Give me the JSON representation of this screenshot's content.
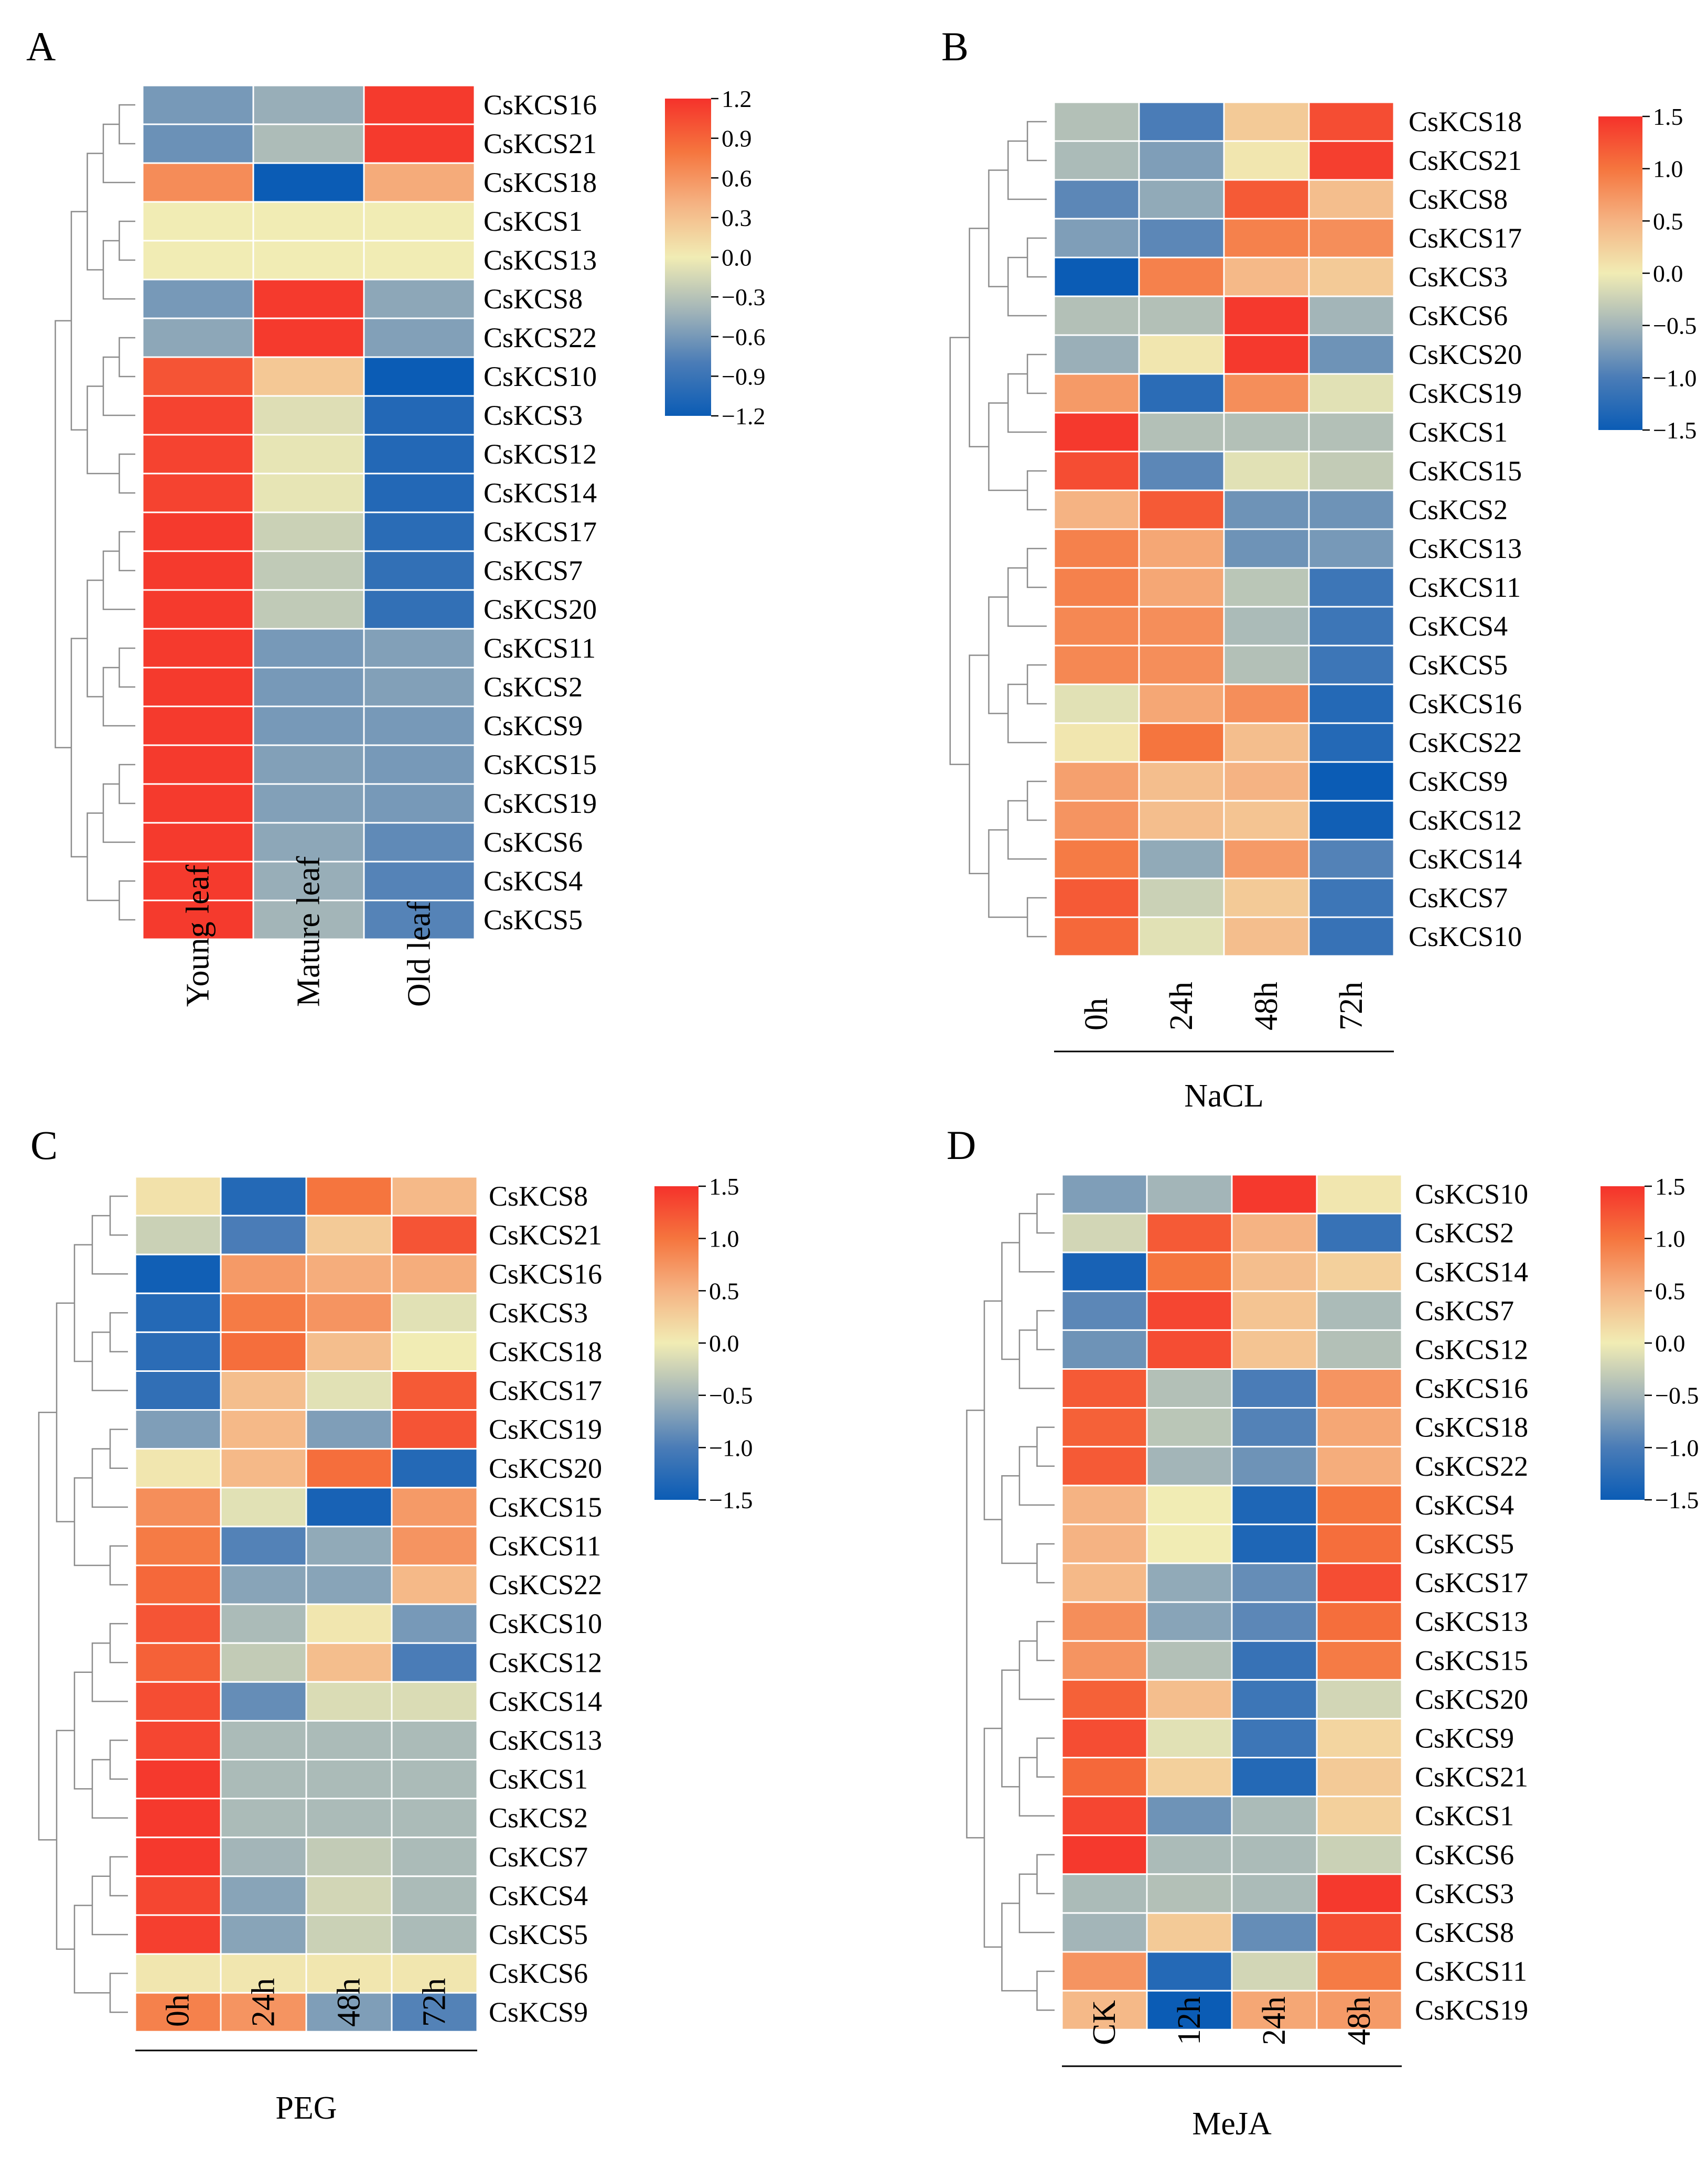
{
  "chart_data": [
    {
      "type": "heatmap",
      "panel": "A",
      "title": "",
      "xlabel": "",
      "columns": [
        "Young leaf",
        "Mature leaf",
        "Old leaf"
      ],
      "rows": [
        "CsKCS16",
        "CsKCS21",
        "CsKCS18",
        "CsKCS1",
        "CsKCS13",
        "CsKCS8",
        "CsKCS22",
        "CsKCS10",
        "CsKCS3",
        "CsKCS12",
        "CsKCS14",
        "CsKCS17",
        "CsKCS7",
        "CsKCS20",
        "CsKCS11",
        "CsKCS2",
        "CsKCS9",
        "CsKCS15",
        "CsKCS19",
        "CsKCS6",
        "CsKCS4",
        "CsKCS5"
      ],
      "values": [
        [
          -0.6,
          -0.45,
          1.15
        ],
        [
          -0.65,
          -0.35,
          1.15
        ],
        [
          0.65,
          -1.2,
          0.45
        ],
        [
          0.0,
          0.0,
          0.0
        ],
        [
          0.0,
          0.0,
          0.0
        ],
        [
          -0.6,
          1.15,
          -0.5
        ],
        [
          -0.5,
          1.15,
          -0.55
        ],
        [
          1.0,
          0.25,
          -1.2
        ],
        [
          1.1,
          -0.1,
          -1.05
        ],
        [
          1.1,
          -0.05,
          -1.05
        ],
        [
          1.1,
          -0.05,
          -1.05
        ],
        [
          1.15,
          -0.2,
          -1.0
        ],
        [
          1.15,
          -0.25,
          -0.95
        ],
        [
          1.15,
          -0.25,
          -0.95
        ],
        [
          1.15,
          -0.6,
          -0.55
        ],
        [
          1.15,
          -0.6,
          -0.55
        ],
        [
          1.15,
          -0.6,
          -0.6
        ],
        [
          1.15,
          -0.55,
          -0.6
        ],
        [
          1.15,
          -0.55,
          -0.6
        ],
        [
          1.15,
          -0.5,
          -0.7
        ],
        [
          1.15,
          -0.45,
          -0.75
        ],
        [
          1.15,
          -0.4,
          -0.75
        ]
      ],
      "colorbar": {
        "vmin": -1.2,
        "vmax": 1.2,
        "ticks": [
          "1.2",
          "0.9",
          "0.6",
          "0.3",
          "0.0",
          "−0.3",
          "−0.6",
          "−0.9",
          "−1.2"
        ]
      },
      "colormap": [
        "#0b5cb5",
        "#4a7cb7",
        "#a3b5b8",
        "#f1ecb4",
        "#f5b383",
        "#f5753e",
        "#f5322b"
      ]
    },
    {
      "type": "heatmap",
      "panel": "B",
      "title": "",
      "xlabel": "NaCL",
      "columns": [
        "0h",
        "24h",
        "48h",
        "72h"
      ],
      "rows": [
        "CsKCS18",
        "CsKCS21",
        "CsKCS8",
        "CsKCS17",
        "CsKCS3",
        "CsKCS6",
        "CsKCS20",
        "CsKCS19",
        "CsKCS1",
        "CsKCS15",
        "CsKCS2",
        "CsKCS13",
        "CsKCS11",
        "CsKCS4",
        "CsKCS5",
        "CsKCS16",
        "CsKCS22",
        "CsKCS9",
        "CsKCS12",
        "CsKCS14",
        "CsKCS7",
        "CsKCS10"
      ],
      "values": [
        [
          -0.4,
          -1.0,
          0.3,
          1.3
        ],
        [
          -0.45,
          -0.7,
          0.05,
          1.4
        ],
        [
          -0.9,
          -0.6,
          1.2,
          0.4
        ],
        [
          -0.7,
          -0.9,
          0.9,
          0.8
        ],
        [
          -1.5,
          0.9,
          0.45,
          0.3
        ],
        [
          -0.4,
          -0.4,
          1.45,
          -0.5
        ],
        [
          -0.55,
          0.05,
          1.45,
          -0.8
        ],
        [
          0.7,
          -1.25,
          0.8,
          -0.1
        ],
        [
          1.45,
          -0.4,
          -0.4,
          -0.4
        ],
        [
          1.3,
          -0.9,
          -0.1,
          -0.3
        ],
        [
          0.5,
          1.2,
          -0.8,
          -0.8
        ],
        [
          0.9,
          0.6,
          -0.8,
          -0.75
        ],
        [
          0.9,
          0.6,
          -0.35,
          -1.1
        ],
        [
          0.85,
          0.8,
          -0.45,
          -1.1
        ],
        [
          0.85,
          0.8,
          -0.4,
          -1.1
        ],
        [
          -0.1,
          0.6,
          0.8,
          -1.3
        ],
        [
          0.05,
          1.0,
          0.4,
          -1.3
        ],
        [
          0.65,
          0.4,
          0.5,
          -1.5
        ],
        [
          0.75,
          0.4,
          0.35,
          -1.45
        ],
        [
          0.95,
          -0.6,
          0.7,
          -0.95
        ],
        [
          1.2,
          -0.25,
          0.3,
          -1.1
        ],
        [
          1.1,
          -0.1,
          0.4,
          -1.15
        ]
      ],
      "colorbar": {
        "vmin": -1.5,
        "vmax": 1.5,
        "ticks": [
          "1.5",
          "1.0",
          "0.5",
          "0.0",
          "−0.5",
          "−1.0",
          "−1.5"
        ]
      },
      "colormap": [
        "#0b5cb5",
        "#4a7cb7",
        "#a3b5b8",
        "#f1ecb4",
        "#f5b383",
        "#f5753e",
        "#f5322b"
      ]
    },
    {
      "type": "heatmap",
      "panel": "C",
      "title": "",
      "xlabel": "PEG",
      "columns": [
        "0h",
        "24h",
        "48h",
        "72h"
      ],
      "rows": [
        "CsKCS8",
        "CsKCS21",
        "CsKCS16",
        "CsKCS3",
        "CsKCS18",
        "CsKCS17",
        "CsKCS19",
        "CsKCS20",
        "CsKCS15",
        "CsKCS11",
        "CsKCS22",
        "CsKCS10",
        "CsKCS12",
        "CsKCS14",
        "CsKCS13",
        "CsKCS1",
        "CsKCS2",
        "CsKCS7",
        "CsKCS4",
        "CsKCS5",
        "CsKCS6",
        "CsKCS9"
      ],
      "values": [
        [
          0.1,
          -1.3,
          1.0,
          0.45
        ],
        [
          -0.25,
          -1.0,
          0.3,
          1.25
        ],
        [
          -1.45,
          0.7,
          0.55,
          0.55
        ],
        [
          -1.3,
          0.95,
          0.75,
          -0.1
        ],
        [
          -1.25,
          1.05,
          0.4,
          0.0
        ],
        [
          -1.2,
          0.4,
          -0.1,
          1.2
        ],
        [
          -0.7,
          0.45,
          -0.7,
          1.25
        ],
        [
          0.05,
          0.45,
          1.05,
          -1.3
        ],
        [
          0.8,
          -0.1,
          -1.4,
          0.7
        ],
        [
          0.95,
          -0.95,
          -0.6,
          0.75
        ],
        [
          1.1,
          -0.65,
          -0.65,
          0.45
        ],
        [
          1.25,
          -0.45,
          0.05,
          -0.75
        ],
        [
          1.15,
          -0.3,
          0.4,
          -1.0
        ],
        [
          1.3,
          -0.85,
          -0.15,
          -0.15
        ],
        [
          1.35,
          -0.45,
          -0.45,
          -0.45
        ],
        [
          1.45,
          -0.45,
          -0.45,
          -0.45
        ],
        [
          1.45,
          -0.45,
          -0.45,
          -0.45
        ],
        [
          1.45,
          -0.5,
          -0.3,
          -0.45
        ],
        [
          1.35,
          -0.65,
          -0.2,
          -0.45
        ],
        [
          1.4,
          -0.65,
          -0.25,
          -0.45
        ],
        [
          0.05,
          0.05,
          0.05,
          0.05
        ],
        [
          0.9,
          0.75,
          -0.7,
          -0.95
        ]
      ],
      "colorbar": {
        "vmin": -1.5,
        "vmax": 1.5,
        "ticks": [
          "1.5",
          "1.0",
          "0.5",
          "0.0",
          "−0.5",
          "−1.0",
          "−1.5"
        ]
      },
      "colormap": [
        "#0b5cb5",
        "#4a7cb7",
        "#a3b5b8",
        "#f1ecb4",
        "#f5b383",
        "#f5753e",
        "#f5322b"
      ]
    },
    {
      "type": "heatmap",
      "panel": "D",
      "title": "",
      "xlabel": "MeJA",
      "columns": [
        "CK",
        "12h",
        "24h",
        "48h"
      ],
      "rows": [
        "CsKCS10",
        "CsKCS2",
        "CsKCS14",
        "CsKCS7",
        "CsKCS12",
        "CsKCS16",
        "CsKCS18",
        "CsKCS22",
        "CsKCS4",
        "CsKCS5",
        "CsKCS17",
        "CsKCS13",
        "CsKCS15",
        "CsKCS20",
        "CsKCS9",
        "CsKCS21",
        "CsKCS1",
        "CsKCS6",
        "CsKCS3",
        "CsKCS8",
        "CsKCS11",
        "CsKCS19"
      ],
      "values": [
        [
          -0.7,
          -0.5,
          1.45,
          0.05
        ],
        [
          -0.2,
          1.2,
          0.5,
          -1.15
        ],
        [
          -1.4,
          1.0,
          0.4,
          0.25
        ],
        [
          -0.9,
          1.35,
          0.35,
          -0.45
        ],
        [
          -0.8,
          1.3,
          0.35,
          -0.4
        ],
        [
          1.2,
          -0.4,
          -1.0,
          0.75
        ],
        [
          1.15,
          -0.35,
          -0.95,
          0.6
        ],
        [
          1.2,
          -0.5,
          -0.8,
          0.55
        ],
        [
          0.5,
          0.0,
          -1.35,
          1.0
        ],
        [
          0.5,
          0.0,
          -1.35,
          1.05
        ],
        [
          0.45,
          -0.6,
          -0.85,
          1.3
        ],
        [
          0.8,
          -0.65,
          -0.9,
          1.05
        ],
        [
          0.75,
          -0.4,
          -1.15,
          0.95
        ],
        [
          1.15,
          0.4,
          -1.1,
          -0.2
        ],
        [
          1.3,
          -0.1,
          -1.1,
          0.2
        ],
        [
          1.1,
          0.25,
          -1.3,
          0.3
        ],
        [
          1.35,
          -0.8,
          -0.45,
          0.25
        ],
        [
          1.45,
          -0.45,
          -0.45,
          -0.25
        ],
        [
          -0.45,
          -0.4,
          -0.45,
          1.45
        ],
        [
          -0.5,
          0.3,
          -0.85,
          1.3
        ],
        [
          0.75,
          -1.3,
          -0.2,
          0.95
        ],
        [
          0.45,
          -1.5,
          0.6,
          0.7
        ]
      ],
      "colorbar": {
        "vmin": -1.5,
        "vmax": 1.5,
        "ticks": [
          "1.5",
          "1.0",
          "0.5",
          "0.0",
          "−0.5",
          "−1.0",
          "−1.5"
        ]
      },
      "colormap": [
        "#0b5cb5",
        "#4a7cb7",
        "#a3b5b8",
        "#f1ecb4",
        "#f5b383",
        "#f5753e",
        "#f5322b"
      ]
    }
  ]
}
